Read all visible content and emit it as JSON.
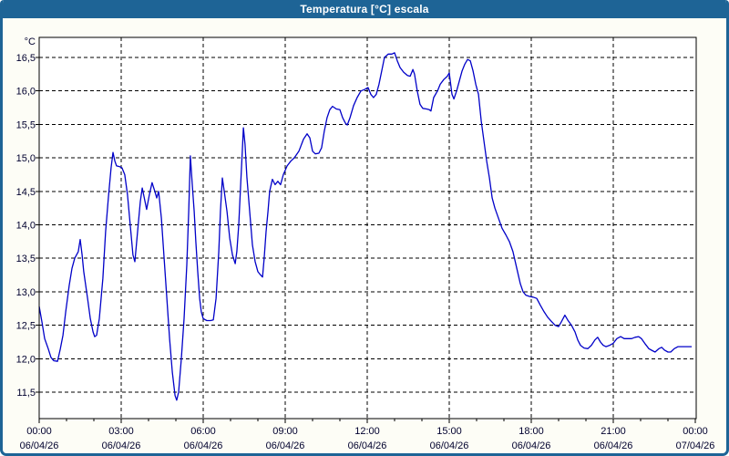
{
  "window": {
    "title": "Temperatura [°C] escala"
  },
  "colors": {
    "titlebar_and_border": "#1E6496",
    "title_text": "#FFFFFF",
    "line": "#0000C8",
    "grid": "#000000",
    "plot_background": "#FFFFFF",
    "window_background": "#FDFDF6",
    "axis_label_text": "#00002E"
  },
  "chart_data": {
    "type": "line",
    "title": "Temperatura [°C] escala",
    "xlabel": "",
    "ylabel": "°C",
    "legend": "none",
    "grid": "dashed",
    "ylim": [
      11.1,
      16.8
    ],
    "x_range_hours": [
      0,
      24
    ],
    "x_major_tick_hours": 3,
    "x_minor_tick_hours": 1,
    "y_ticks": [
      {
        "value": 16.5,
        "label": "16,5"
      },
      {
        "value": 16.0,
        "label": "16,0"
      },
      {
        "value": 15.5,
        "label": "15,5"
      },
      {
        "value": 15.0,
        "label": "15,0"
      },
      {
        "value": 14.5,
        "label": "14,5"
      },
      {
        "value": 14.0,
        "label": "14,0"
      },
      {
        "value": 13.5,
        "label": "13,5"
      },
      {
        "value": 13.0,
        "label": "13,0"
      },
      {
        "value": 12.5,
        "label": "12,5"
      },
      {
        "value": 12.0,
        "label": "12,0"
      },
      {
        "value": 11.5,
        "label": "11,5"
      }
    ],
    "x_ticks": [
      {
        "hours": 0,
        "time": "00:00",
        "date": "06/04/26"
      },
      {
        "hours": 3,
        "time": "03:00",
        "date": "06/04/26"
      },
      {
        "hours": 6,
        "time": "06:00",
        "date": "06/04/26"
      },
      {
        "hours": 9,
        "time": "09:00",
        "date": "06/04/26"
      },
      {
        "hours": 12,
        "time": "12:00",
        "date": "06/04/26"
      },
      {
        "hours": 15,
        "time": "15:00",
        "date": "06/04/26"
      },
      {
        "hours": 18,
        "time": "18:00",
        "date": "06/04/26"
      },
      {
        "hours": 21,
        "time": "21:00",
        "date": "06/04/26"
      },
      {
        "hours": 24,
        "time": "00:00",
        "date": "07/04/26"
      }
    ],
    "series": [
      {
        "name": "Temperatura",
        "color": "#0000C8",
        "points": [
          [
            0,
            12.78
          ],
          [
            0.1,
            12.55
          ],
          [
            0.2,
            12.3
          ],
          [
            0.33,
            12.15
          ],
          [
            0.43,
            12.02
          ],
          [
            0.53,
            11.97
          ],
          [
            0.67,
            11.96
          ],
          [
            0.77,
            12.14
          ],
          [
            0.87,
            12.35
          ],
          [
            0.97,
            12.7
          ],
          [
            1.1,
            13.1
          ],
          [
            1.2,
            13.35
          ],
          [
            1.3,
            13.5
          ],
          [
            1.43,
            13.6
          ],
          [
            1.5,
            13.78
          ],
          [
            1.57,
            13.55
          ],
          [
            1.63,
            13.3
          ],
          [
            1.77,
            12.9
          ],
          [
            1.87,
            12.6
          ],
          [
            1.97,
            12.4
          ],
          [
            2.03,
            12.33
          ],
          [
            2.1,
            12.35
          ],
          [
            2.2,
            12.6
          ],
          [
            2.33,
            13.2
          ],
          [
            2.43,
            13.9
          ],
          [
            2.53,
            14.4
          ],
          [
            2.63,
            14.85
          ],
          [
            2.7,
            15.08
          ],
          [
            2.77,
            14.95
          ],
          [
            2.83,
            14.88
          ],
          [
            2.93,
            14.87
          ],
          [
            3.03,
            14.85
          ],
          [
            3.13,
            14.75
          ],
          [
            3.23,
            14.45
          ],
          [
            3.33,
            14.0
          ],
          [
            3.43,
            13.55
          ],
          [
            3.5,
            13.45
          ],
          [
            3.6,
            13.9
          ],
          [
            3.7,
            14.35
          ],
          [
            3.77,
            14.55
          ],
          [
            3.87,
            14.35
          ],
          [
            3.93,
            14.23
          ],
          [
            4.03,
            14.45
          ],
          [
            4.13,
            14.63
          ],
          [
            4.23,
            14.5
          ],
          [
            4.3,
            14.4
          ],
          [
            4.37,
            14.5
          ],
          [
            4.47,
            14.1
          ],
          [
            4.57,
            13.5
          ],
          [
            4.67,
            12.9
          ],
          [
            4.77,
            12.3
          ],
          [
            4.87,
            11.8
          ],
          [
            4.97,
            11.45
          ],
          [
            5.03,
            11.38
          ],
          [
            5.1,
            11.5
          ],
          [
            5.2,
            12.0
          ],
          [
            5.3,
            12.6
          ],
          [
            5.4,
            13.4
          ],
          [
            5.47,
            14.2
          ],
          [
            5.53,
            15.03
          ],
          [
            5.6,
            14.6
          ],
          [
            5.67,
            14.2
          ],
          [
            5.73,
            13.75
          ],
          [
            5.8,
            13.3
          ],
          [
            5.87,
            12.9
          ],
          [
            5.93,
            12.7
          ],
          [
            6.0,
            12.6
          ],
          [
            6.13,
            12.57
          ],
          [
            6.27,
            12.57
          ],
          [
            6.37,
            12.58
          ],
          [
            6.47,
            12.9
          ],
          [
            6.57,
            13.6
          ],
          [
            6.63,
            14.2
          ],
          [
            6.7,
            14.7
          ],
          [
            6.77,
            14.5
          ],
          [
            6.87,
            14.2
          ],
          [
            6.97,
            13.8
          ],
          [
            7.07,
            13.55
          ],
          [
            7.17,
            13.42
          ],
          [
            7.23,
            13.6
          ],
          [
            7.3,
            14.0
          ],
          [
            7.37,
            14.6
          ],
          [
            7.43,
            15.1
          ],
          [
            7.47,
            15.45
          ],
          [
            7.53,
            15.2
          ],
          [
            7.6,
            14.7
          ],
          [
            7.7,
            14.2
          ],
          [
            7.8,
            13.7
          ],
          [
            7.9,
            13.45
          ],
          [
            8.0,
            13.3
          ],
          [
            8.1,
            13.25
          ],
          [
            8.17,
            13.22
          ],
          [
            8.23,
            13.5
          ],
          [
            8.3,
            13.9
          ],
          [
            8.37,
            14.2
          ],
          [
            8.43,
            14.5
          ],
          [
            8.53,
            14.68
          ],
          [
            8.63,
            14.6
          ],
          [
            8.73,
            14.65
          ],
          [
            8.83,
            14.6
          ],
          [
            8.93,
            14.75
          ],
          [
            9.07,
            14.88
          ],
          [
            9.2,
            14.95
          ],
          [
            9.33,
            15.0
          ],
          [
            9.5,
            15.1
          ],
          [
            9.67,
            15.28
          ],
          [
            9.8,
            15.36
          ],
          [
            9.9,
            15.3
          ],
          [
            10.0,
            15.1
          ],
          [
            10.1,
            15.06
          ],
          [
            10.23,
            15.07
          ],
          [
            10.33,
            15.15
          ],
          [
            10.43,
            15.4
          ],
          [
            10.53,
            15.6
          ],
          [
            10.63,
            15.72
          ],
          [
            10.73,
            15.77
          ],
          [
            10.87,
            15.73
          ],
          [
            11.0,
            15.72
          ],
          [
            11.1,
            15.6
          ],
          [
            11.2,
            15.52
          ],
          [
            11.27,
            15.49
          ],
          [
            11.37,
            15.6
          ],
          [
            11.5,
            15.78
          ],
          [
            11.63,
            15.9
          ],
          [
            11.77,
            16.0
          ],
          [
            11.9,
            16.02
          ],
          [
            12.03,
            16.05
          ],
          [
            12.13,
            15.95
          ],
          [
            12.23,
            15.9
          ],
          [
            12.33,
            15.95
          ],
          [
            12.43,
            16.1
          ],
          [
            12.53,
            16.3
          ],
          [
            12.63,
            16.5
          ],
          [
            12.77,
            16.55
          ],
          [
            12.9,
            16.55
          ],
          [
            13.0,
            16.57
          ],
          [
            13.1,
            16.45
          ],
          [
            13.2,
            16.35
          ],
          [
            13.33,
            16.28
          ],
          [
            13.47,
            16.23
          ],
          [
            13.57,
            16.22
          ],
          [
            13.67,
            16.32
          ],
          [
            13.73,
            16.25
          ],
          [
            13.83,
            16.0
          ],
          [
            13.93,
            15.8
          ],
          [
            14.03,
            15.74
          ],
          [
            14.17,
            15.73
          ],
          [
            14.27,
            15.72
          ],
          [
            14.33,
            15.7
          ],
          [
            14.43,
            15.9
          ],
          [
            14.57,
            16.0
          ],
          [
            14.67,
            16.1
          ],
          [
            14.8,
            16.17
          ],
          [
            14.93,
            16.22
          ],
          [
            15.0,
            16.27
          ],
          [
            15.1,
            15.95
          ],
          [
            15.17,
            15.88
          ],
          [
            15.27,
            16.0
          ],
          [
            15.37,
            16.15
          ],
          [
            15.47,
            16.3
          ],
          [
            15.57,
            16.4
          ],
          [
            15.67,
            16.47
          ],
          [
            15.77,
            16.45
          ],
          [
            15.87,
            16.3
          ],
          [
            15.97,
            16.1
          ],
          [
            16.07,
            15.95
          ],
          [
            16.17,
            15.55
          ],
          [
            16.27,
            15.25
          ],
          [
            16.37,
            14.95
          ],
          [
            16.47,
            14.7
          ],
          [
            16.57,
            14.4
          ],
          [
            16.67,
            14.25
          ],
          [
            16.8,
            14.1
          ],
          [
            16.93,
            13.95
          ],
          [
            17.07,
            13.85
          ],
          [
            17.2,
            13.75
          ],
          [
            17.33,
            13.6
          ],
          [
            17.47,
            13.35
          ],
          [
            17.6,
            13.12
          ],
          [
            17.7,
            13.0
          ],
          [
            17.8,
            12.95
          ],
          [
            17.93,
            12.93
          ],
          [
            18.07,
            12.92
          ],
          [
            18.2,
            12.9
          ],
          [
            18.33,
            12.8
          ],
          [
            18.47,
            12.7
          ],
          [
            18.6,
            12.62
          ],
          [
            18.73,
            12.56
          ],
          [
            18.87,
            12.5
          ],
          [
            19.0,
            12.48
          ],
          [
            19.1,
            12.55
          ],
          [
            19.23,
            12.65
          ],
          [
            19.33,
            12.58
          ],
          [
            19.47,
            12.5
          ],
          [
            19.6,
            12.4
          ],
          [
            19.7,
            12.28
          ],
          [
            19.8,
            12.2
          ],
          [
            19.93,
            12.16
          ],
          [
            20.07,
            12.15
          ],
          [
            20.2,
            12.2
          ],
          [
            20.33,
            12.28
          ],
          [
            20.43,
            12.32
          ],
          [
            20.53,
            12.25
          ],
          [
            20.63,
            12.2
          ],
          [
            20.73,
            12.18
          ],
          [
            20.87,
            12.2
          ],
          [
            21.0,
            12.23
          ],
          [
            21.13,
            12.3
          ],
          [
            21.27,
            12.33
          ],
          [
            21.4,
            12.3
          ],
          [
            21.53,
            12.3
          ],
          [
            21.67,
            12.3
          ],
          [
            21.8,
            12.32
          ],
          [
            21.93,
            12.33
          ],
          [
            22.03,
            12.3
          ],
          [
            22.17,
            12.22
          ],
          [
            22.3,
            12.15
          ],
          [
            22.43,
            12.12
          ],
          [
            22.53,
            12.1
          ],
          [
            22.67,
            12.15
          ],
          [
            22.77,
            12.17
          ],
          [
            22.87,
            12.13
          ],
          [
            23.0,
            12.1
          ],
          [
            23.1,
            12.1
          ],
          [
            23.23,
            12.15
          ],
          [
            23.37,
            12.18
          ],
          [
            23.5,
            12.18
          ],
          [
            23.67,
            12.18
          ],
          [
            23.87,
            12.18
          ]
        ]
      }
    ]
  }
}
